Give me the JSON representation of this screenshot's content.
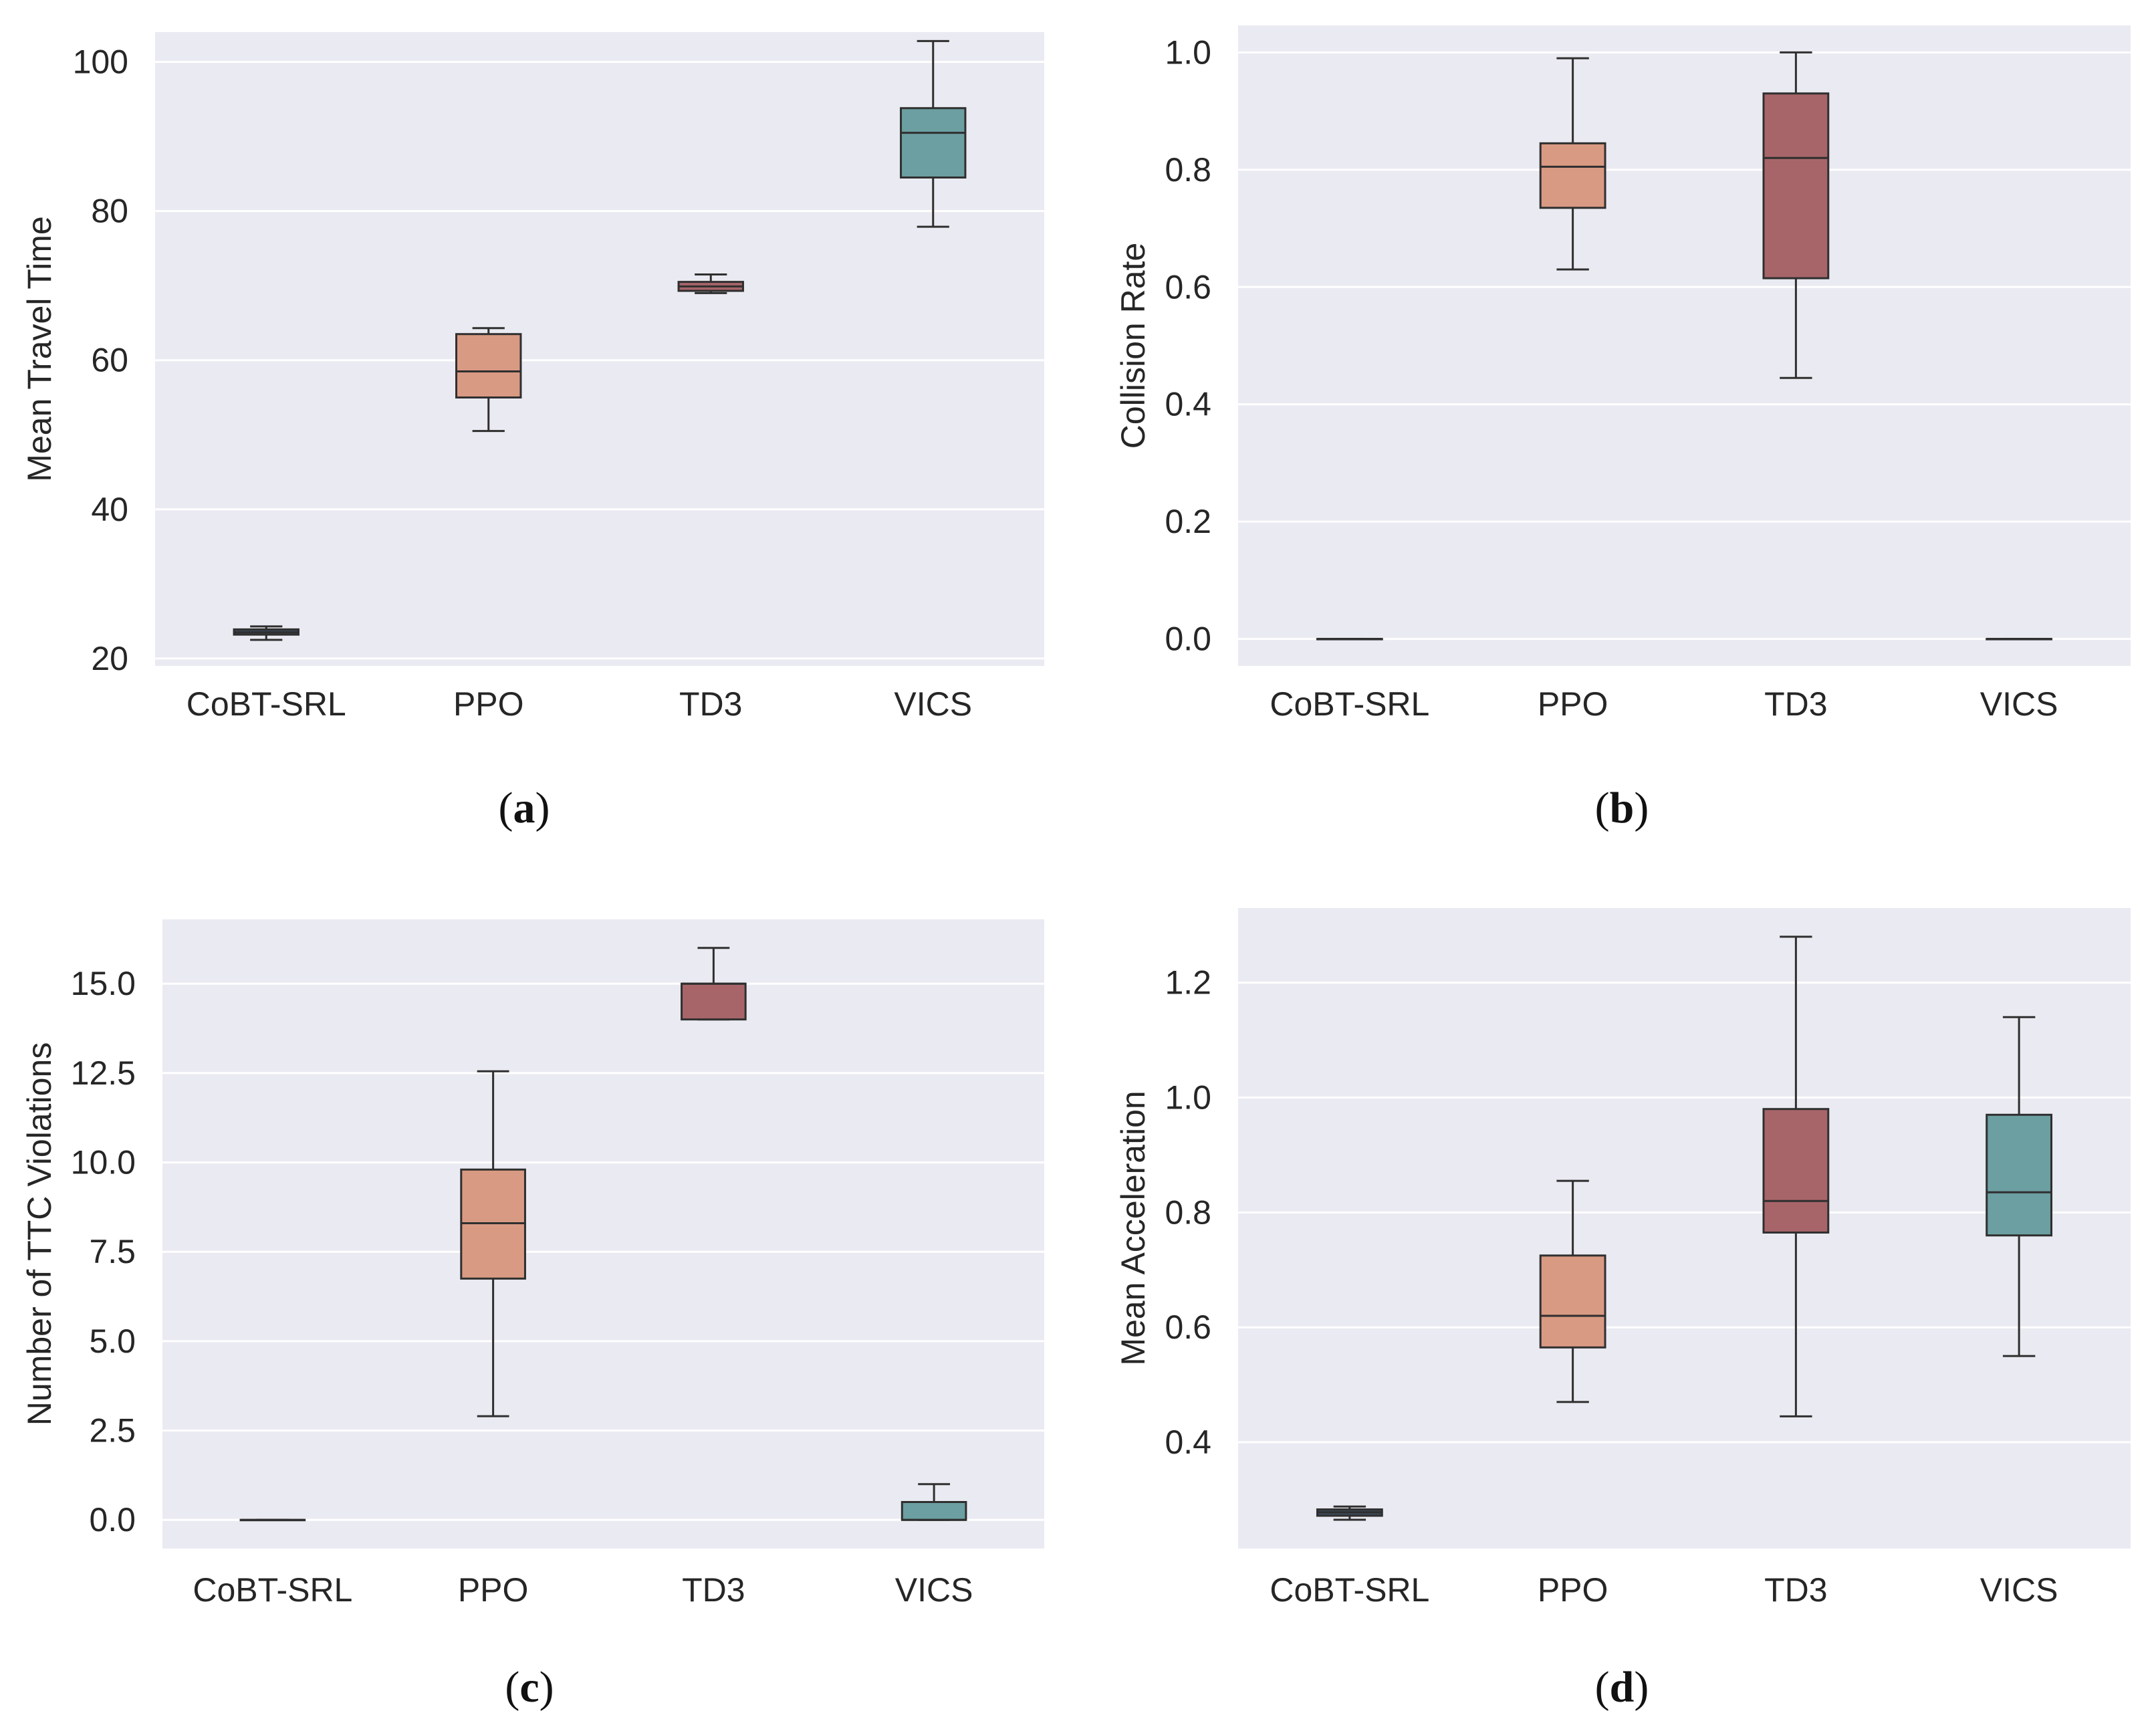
{
  "chart_data": [
    {
      "type": "box",
      "caption": "a",
      "ylabel": "Mean Travel Time",
      "categories": [
        "CoBT-SRL",
        "PPO",
        "TD3",
        "VICS"
      ],
      "colors": [
        "#3b4a5a",
        "#d99a83",
        "#a7656a",
        "#6c9fa2"
      ],
      "ylim": [
        19,
        104
      ],
      "yticks": [
        20,
        40,
        60,
        80,
        100
      ],
      "yticklabels": [
        "20",
        "40",
        "60",
        "80",
        "100"
      ],
      "boxes": [
        {
          "whislo": 22.5,
          "q1": 23.2,
          "med": 23.5,
          "q3": 23.9,
          "whishi": 24.3
        },
        {
          "whislo": 50.5,
          "q1": 55.0,
          "med": 58.5,
          "q3": 63.5,
          "whishi": 64.3
        },
        {
          "whislo": 69.0,
          "q1": 69.3,
          "med": 69.9,
          "q3": 70.5,
          "whishi": 71.5
        },
        {
          "whislo": 77.9,
          "q1": 84.5,
          "med": 90.5,
          "q3": 93.8,
          "whishi": 102.8
        }
      ]
    },
    {
      "type": "box",
      "caption": "b",
      "ylabel": "Collision Rate",
      "categories": [
        "CoBT-SRL",
        "PPO",
        "TD3",
        "VICS"
      ],
      "colors": [
        "#3b4a5a",
        "#d99a83",
        "#a7656a",
        "#6c9fa2"
      ],
      "ylim": [
        -0.046,
        1.046
      ],
      "yticks": [
        0.0,
        0.2,
        0.4,
        0.6,
        0.8,
        1.0
      ],
      "yticklabels": [
        "0.0",
        "0.2",
        "0.4",
        "0.6",
        "0.8",
        "1.0"
      ],
      "boxes": [
        {
          "whislo": 0.0,
          "q1": 0.0,
          "med": 0.0,
          "q3": 0.0,
          "whishi": 0.0
        },
        {
          "whislo": 0.63,
          "q1": 0.735,
          "med": 0.805,
          "q3": 0.845,
          "whishi": 0.99
        },
        {
          "whislo": 0.445,
          "q1": 0.615,
          "med": 0.82,
          "q3": 0.93,
          "whishi": 1.0
        },
        {
          "whislo": 0.0,
          "q1": 0.0,
          "med": 0.0,
          "q3": 0.0,
          "whishi": 0.0
        }
      ]
    },
    {
      "type": "box",
      "caption": "c",
      "ylabel": "Number of TTC Violations",
      "categories": [
        "CoBT-SRL",
        "PPO",
        "TD3",
        "VICS"
      ],
      "colors": [
        "#3b4a5a",
        "#d99a83",
        "#a7656a",
        "#6c9fa2"
      ],
      "ylim": [
        -0.8,
        16.8
      ],
      "yticks": [
        0.0,
        2.5,
        5.0,
        7.5,
        10.0,
        12.5,
        15.0
      ],
      "yticklabels": [
        "0.0",
        "2.5",
        "5.0",
        "7.5",
        "10.0",
        "12.5",
        "15.0"
      ],
      "boxes": [
        {
          "whislo": 0.0,
          "q1": 0.0,
          "med": 0.0,
          "q3": 0.0,
          "whishi": 0.0
        },
        {
          "whislo": 2.9,
          "q1": 6.75,
          "med": 8.3,
          "q3": 9.8,
          "whishi": 12.55
        },
        {
          "whislo": 14.0,
          "q1": 14.0,
          "med": 15.0,
          "q3": 15.0,
          "whishi": 16.0
        },
        {
          "whislo": 0.0,
          "q1": 0.0,
          "med": 0.0,
          "q3": 0.5,
          "whishi": 1.0
        }
      ]
    },
    {
      "type": "box",
      "caption": "d",
      "ylabel": "Mean Acceleration",
      "categories": [
        "CoBT-SRL",
        "PPO",
        "TD3",
        "VICS"
      ],
      "colors": [
        "#3b4a5a",
        "#d99a83",
        "#a7656a",
        "#6c9fa2"
      ],
      "ylim": [
        0.215,
        1.33
      ],
      "yticks": [
        0.4,
        0.6,
        0.8,
        1.0,
        1.2
      ],
      "yticklabels": [
        "0.4",
        "0.6",
        "0.8",
        "1.0",
        "1.2"
      ],
      "boxes": [
        {
          "whislo": 0.265,
          "q1": 0.272,
          "med": 0.278,
          "q3": 0.283,
          "whishi": 0.288
        },
        {
          "whislo": 0.47,
          "q1": 0.565,
          "med": 0.62,
          "q3": 0.725,
          "whishi": 0.855
        },
        {
          "whislo": 0.445,
          "q1": 0.765,
          "med": 0.82,
          "q3": 0.98,
          "whishi": 1.28
        },
        {
          "whislo": 0.55,
          "q1": 0.76,
          "med": 0.835,
          "q3": 0.97,
          "whishi": 1.14
        }
      ]
    }
  ]
}
